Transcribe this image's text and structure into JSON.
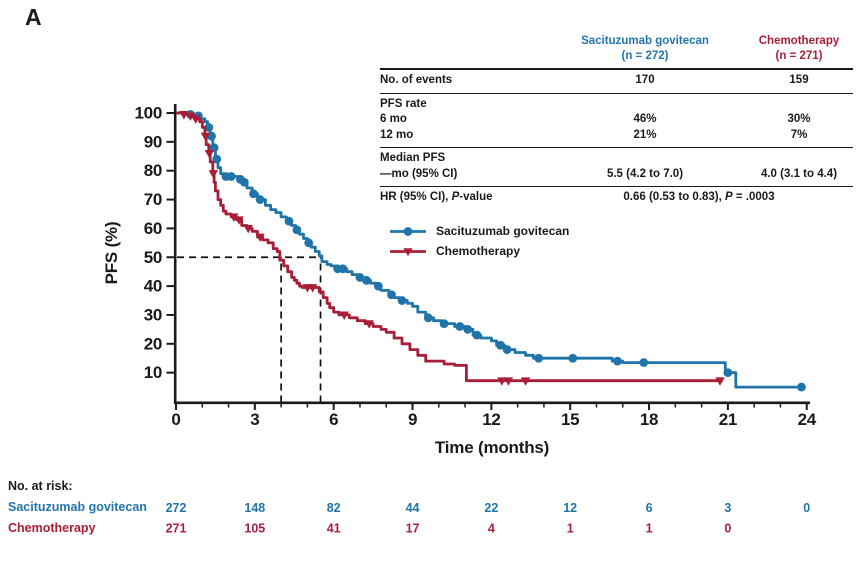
{
  "panel_label": "A",
  "colors": {
    "blue": "#2174a9",
    "blue_text": "#2475ae",
    "red": "#a91e36",
    "axis": "#1a1a1a"
  },
  "stats_table": {
    "col1_header_line1": "Sacituzumab govitecan",
    "col1_header_line2": "(n = 272)",
    "col2_header_line1": "Chemotherapy",
    "col2_header_line2": "(n = 271)",
    "events_label": "No. of events",
    "events_sg": "170",
    "events_ct": "159",
    "pfs_rate_label": "PFS rate",
    "pfs6_label": "6 mo",
    "pfs6_sg": "46%",
    "pfs6_ct": "30%",
    "pfs12_label": "12 mo",
    "pfs12_sg": "21%",
    "pfs12_ct": "7%",
    "median_label1": "Median PFS",
    "median_label2": "—mo (95% CI)",
    "median_sg": "5.5 (4.2 to 7.0)",
    "median_ct": "4.0 (3.1 to 4.4)",
    "hr_label_pre": "HR (95% CI), ",
    "hr_label_p": "P",
    "hr_label_post": "-value",
    "hr_value_pre": "0.66 (0.53 to 0.83), ",
    "hr_value_p": "P",
    "hr_value_post": " = .0003"
  },
  "at_risk_block": {
    "title": "No. at risk:"
  },
  "chart_data": {
    "type": "line",
    "subtype": "kaplan-meier-step",
    "title": "",
    "xlabel": "Time (months)",
    "ylabel": "PFS (%)",
    "xlim": [
      0,
      24
    ],
    "ylim": [
      0,
      100
    ],
    "x_ticks": [
      0,
      3,
      6,
      9,
      12,
      15,
      18,
      21,
      24
    ],
    "x_minor_tick_step": 1,
    "y_ticks": [
      10,
      20,
      30,
      40,
      50,
      60,
      70,
      80,
      90,
      100
    ],
    "grid": false,
    "legend_position": "inside-upper-middle",
    "median_guides": {
      "y_pct": 50,
      "x_months": [
        4.0,
        5.5
      ]
    },
    "at_risk_months": [
      0,
      3,
      6,
      9,
      12,
      15,
      18,
      21,
      24
    ],
    "series": [
      {
        "name": "Sacituzumab govitecan",
        "color": "#2174a9",
        "marker": "circle",
        "median_months": 5.5,
        "steps": [
          [
            0,
            100
          ],
          [
            0.4,
            99.5
          ],
          [
            0.7,
            99
          ],
          [
            0.95,
            98
          ],
          [
            1.1,
            97
          ],
          [
            1.2,
            95
          ],
          [
            1.3,
            92
          ],
          [
            1.4,
            88
          ],
          [
            1.5,
            84
          ],
          [
            1.6,
            81
          ],
          [
            1.7,
            79
          ],
          [
            1.8,
            78
          ],
          [
            2.4,
            77
          ],
          [
            2.5,
            76
          ],
          [
            2.7,
            74
          ],
          [
            2.9,
            72
          ],
          [
            3.1,
            70
          ],
          [
            3.4,
            68
          ],
          [
            3.6,
            66.5
          ],
          [
            3.8,
            65.5
          ],
          [
            4.0,
            64
          ],
          [
            4.2,
            62.5
          ],
          [
            4.4,
            61
          ],
          [
            4.55,
            59.5
          ],
          [
            4.7,
            58
          ],
          [
            4.85,
            56.5
          ],
          [
            5.0,
            55
          ],
          [
            5.15,
            53.5
          ],
          [
            5.3,
            52
          ],
          [
            5.45,
            50.5
          ],
          [
            5.55,
            48.5
          ],
          [
            5.75,
            47.5
          ],
          [
            5.9,
            47
          ],
          [
            6.05,
            46
          ],
          [
            6.5,
            45
          ],
          [
            6.7,
            44
          ],
          [
            6.9,
            43
          ],
          [
            7.1,
            42
          ],
          [
            7.4,
            41
          ],
          [
            7.6,
            40
          ],
          [
            7.8,
            38.5
          ],
          [
            8.1,
            37
          ],
          [
            8.3,
            36
          ],
          [
            8.5,
            35
          ],
          [
            8.8,
            34
          ],
          [
            9.0,
            33
          ],
          [
            9.2,
            31
          ],
          [
            9.5,
            29
          ],
          [
            9.8,
            28
          ],
          [
            10.1,
            27
          ],
          [
            10.6,
            26
          ],
          [
            11.0,
            25
          ],
          [
            11.3,
            23
          ],
          [
            11.6,
            22
          ],
          [
            12.0,
            21
          ],
          [
            12.2,
            19.5
          ],
          [
            12.5,
            18
          ],
          [
            12.9,
            17
          ],
          [
            13.3,
            16
          ],
          [
            13.6,
            15
          ],
          [
            16.6,
            14
          ],
          [
            17.0,
            13.5
          ],
          [
            20.9,
            10
          ],
          [
            21.3,
            5
          ],
          [
            23.8,
            5
          ]
        ],
        "censors": [
          [
            0.55,
            99.5
          ],
          [
            0.85,
            99
          ],
          [
            1.25,
            95
          ],
          [
            1.35,
            92
          ],
          [
            1.45,
            88
          ],
          [
            1.55,
            84
          ],
          [
            1.9,
            78
          ],
          [
            2.1,
            78
          ],
          [
            2.45,
            77
          ],
          [
            2.6,
            76
          ],
          [
            2.95,
            72
          ],
          [
            3.2,
            70
          ],
          [
            4.3,
            62.5
          ],
          [
            4.6,
            59.5
          ],
          [
            5.05,
            55
          ],
          [
            6.15,
            46
          ],
          [
            6.35,
            46
          ],
          [
            7.0,
            43
          ],
          [
            7.25,
            42
          ],
          [
            7.7,
            40
          ],
          [
            8.2,
            37
          ],
          [
            8.6,
            35
          ],
          [
            9.6,
            29
          ],
          [
            10.2,
            27
          ],
          [
            10.8,
            26
          ],
          [
            11.1,
            25
          ],
          [
            11.45,
            23
          ],
          [
            12.35,
            19.5
          ],
          [
            12.6,
            18
          ],
          [
            13.8,
            15
          ],
          [
            15.1,
            15
          ],
          [
            16.8,
            14
          ],
          [
            17.8,
            13.5
          ],
          [
            21.0,
            10
          ],
          [
            23.8,
            5
          ]
        ],
        "at_risk": [
          272,
          148,
          82,
          44,
          22,
          12,
          6,
          3,
          0
        ]
      },
      {
        "name": "Chemotherapy",
        "color": "#a91e36",
        "marker": "triangle-down",
        "median_months": 4.0,
        "steps": [
          [
            0,
            100
          ],
          [
            0.25,
            99.5
          ],
          [
            0.5,
            99
          ],
          [
            0.7,
            98
          ],
          [
            0.9,
            97
          ],
          [
            1.0,
            95
          ],
          [
            1.1,
            92
          ],
          [
            1.15,
            89
          ],
          [
            1.25,
            86
          ],
          [
            1.3,
            83
          ],
          [
            1.4,
            79
          ],
          [
            1.45,
            76
          ],
          [
            1.5,
            73
          ],
          [
            1.6,
            70
          ],
          [
            1.7,
            68
          ],
          [
            1.8,
            66
          ],
          [
            1.9,
            65
          ],
          [
            2.1,
            64
          ],
          [
            2.3,
            63
          ],
          [
            2.5,
            61
          ],
          [
            2.7,
            60
          ],
          [
            2.9,
            59
          ],
          [
            3.1,
            57
          ],
          [
            3.3,
            56
          ],
          [
            3.5,
            55
          ],
          [
            3.7,
            53
          ],
          [
            3.85,
            52
          ],
          [
            3.95,
            49
          ],
          [
            4.1,
            47
          ],
          [
            4.25,
            45
          ],
          [
            4.4,
            43
          ],
          [
            4.5,
            42
          ],
          [
            4.6,
            41
          ],
          [
            4.7,
            40
          ],
          [
            4.8,
            39.5
          ],
          [
            5.45,
            38
          ],
          [
            5.6,
            36
          ],
          [
            5.75,
            34
          ],
          [
            5.85,
            32.5
          ],
          [
            6.0,
            31
          ],
          [
            6.2,
            30
          ],
          [
            6.6,
            29
          ],
          [
            6.9,
            28
          ],
          [
            7.2,
            27
          ],
          [
            7.5,
            26
          ],
          [
            7.8,
            25
          ],
          [
            8.0,
            24
          ],
          [
            8.3,
            22
          ],
          [
            8.6,
            20
          ],
          [
            8.9,
            18
          ],
          [
            9.2,
            16
          ],
          [
            9.5,
            14
          ],
          [
            10.2,
            13
          ],
          [
            10.6,
            12.5
          ],
          [
            11.05,
            7.2
          ],
          [
            20.8,
            7.2
          ]
        ],
        "censors": [
          [
            0.3,
            99.5
          ],
          [
            0.55,
            99
          ],
          [
            0.75,
            98
          ],
          [
            1.12,
            92
          ],
          [
            1.27,
            86
          ],
          [
            1.42,
            79
          ],
          [
            2.2,
            64
          ],
          [
            2.4,
            63
          ],
          [
            2.75,
            60
          ],
          [
            3.2,
            57
          ],
          [
            5.0,
            39.5
          ],
          [
            5.2,
            39.5
          ],
          [
            6.4,
            30
          ],
          [
            7.35,
            27
          ],
          [
            12.4,
            7.2
          ],
          [
            12.65,
            7.2
          ],
          [
            13.3,
            7.2
          ],
          [
            20.7,
            7.2
          ]
        ],
        "at_risk": [
          271,
          105,
          41,
          17,
          4,
          1,
          1,
          0
        ]
      }
    ]
  }
}
